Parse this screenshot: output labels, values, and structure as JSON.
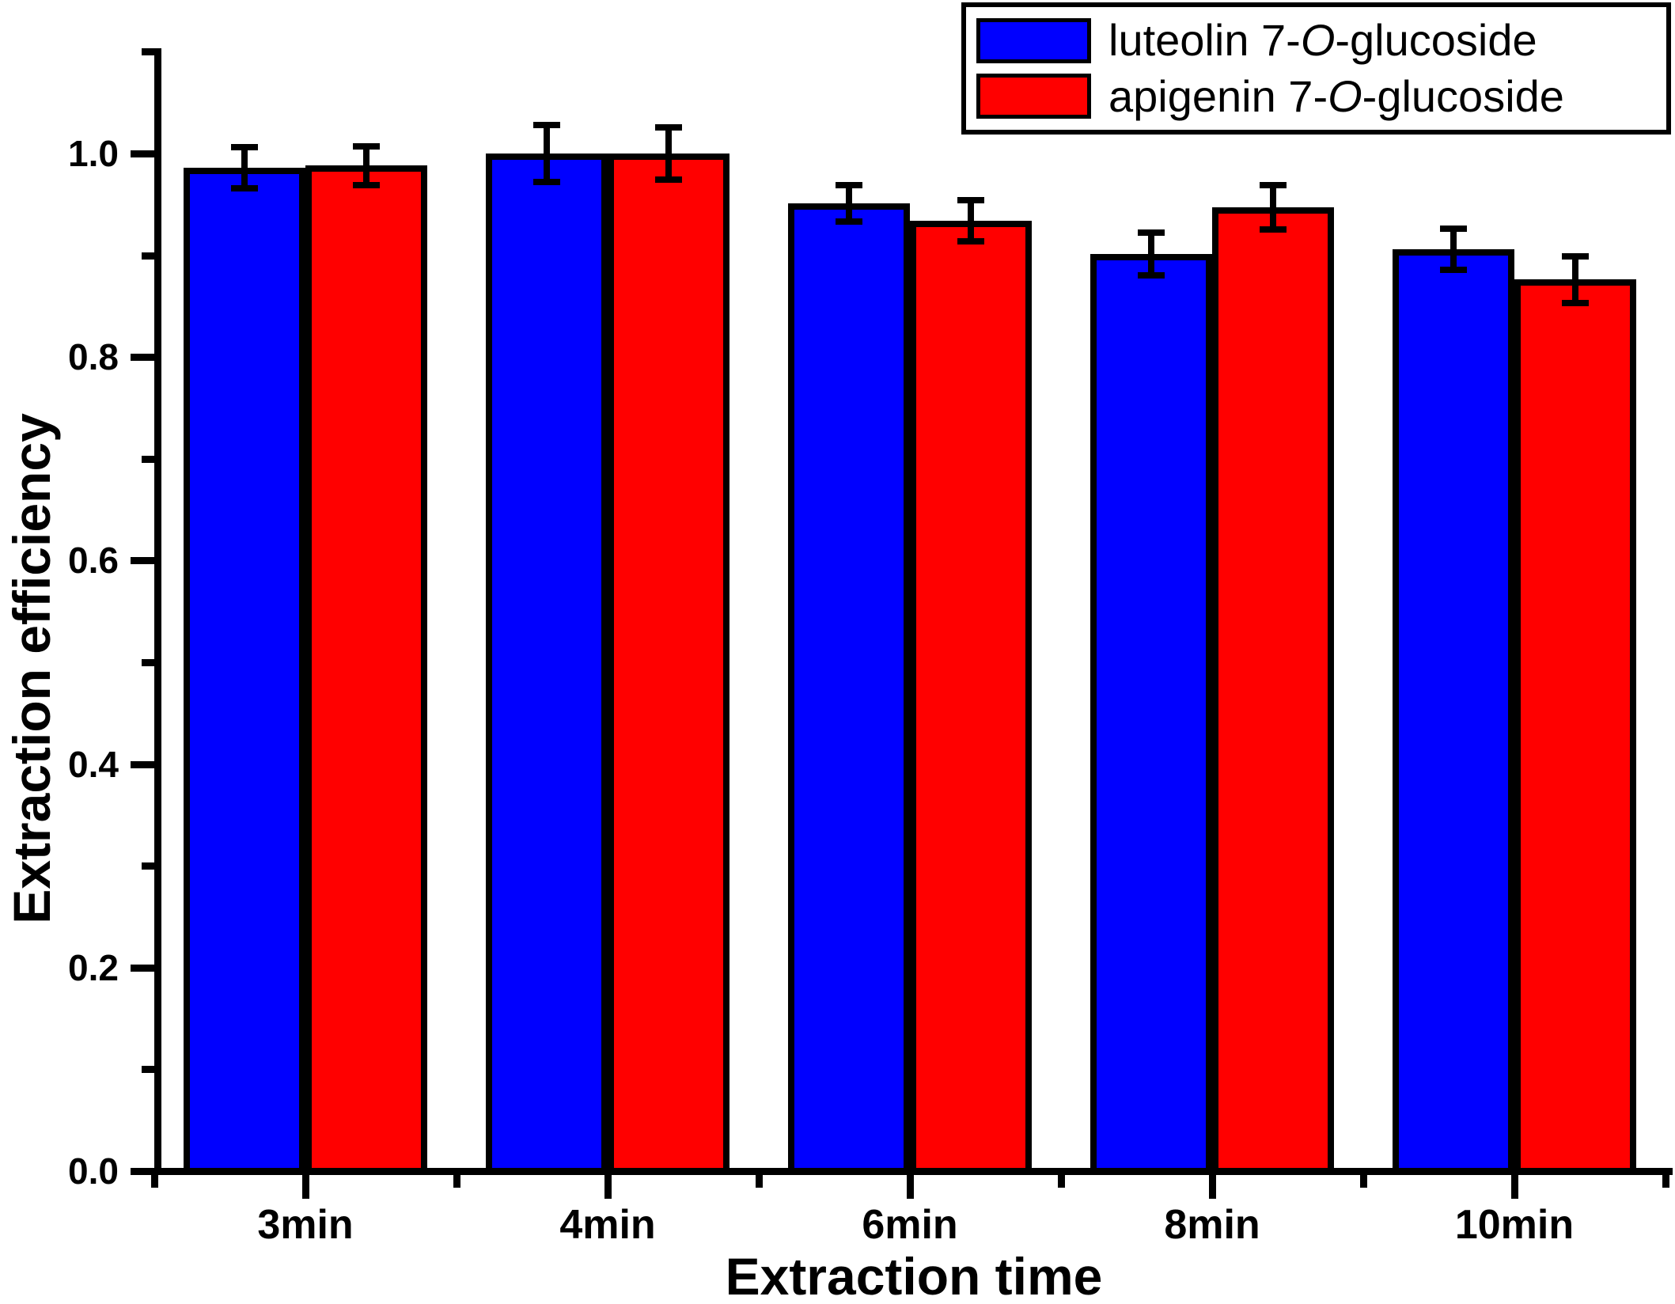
{
  "chart_data": {
    "type": "bar",
    "title": "",
    "xlabel": "Extraction time",
    "ylabel": "Extraction efficiency",
    "categories": [
      "3min",
      "4min",
      "6min",
      "8min",
      "10min"
    ],
    "series": [
      {
        "name": "luteolin 7-O-glucoside",
        "name_parts": {
          "pre": "luteolin 7-",
          "italic": "O",
          "post": "-glucoside"
        },
        "color": "#0000FF",
        "values": [
          0.986,
          1.0,
          0.951,
          0.901,
          0.906
        ],
        "errors": [
          0.02,
          0.028,
          0.018,
          0.021,
          0.02
        ]
      },
      {
        "name": "apigenin 7-O-glucoside",
        "name_parts": {
          "pre": "apigenin 7-",
          "italic": "O",
          "post": "-glucoside"
        },
        "color": "#FF0000",
        "values": [
          0.988,
          1.0,
          0.934,
          0.947,
          0.876
        ],
        "errors": [
          0.019,
          0.026,
          0.02,
          0.022,
          0.023
        ]
      }
    ],
    "ylim": [
      0,
      1.1
    ],
    "y_major_ticks": [
      "0.0",
      "0.2",
      "0.4",
      "0.6",
      "0.8",
      "1.0"
    ],
    "y_major_step": 0.2,
    "y_minor_step": 0.1,
    "grid": false,
    "legend_position": "top-right",
    "axis_color": "#000000",
    "error_bar_color": "#000000"
  }
}
